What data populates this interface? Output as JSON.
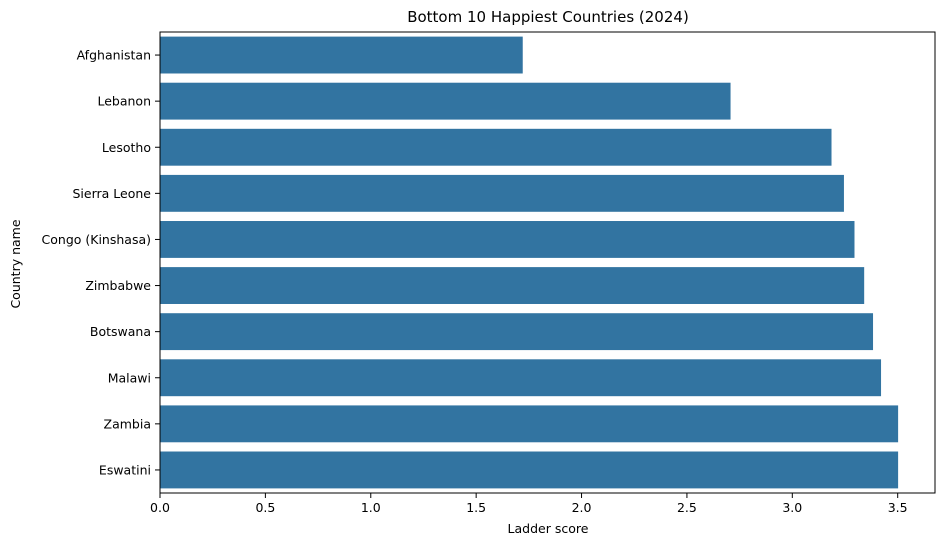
{
  "chart_data": {
    "type": "bar",
    "orientation": "horizontal",
    "title": "Bottom 10 Happiest Countries (2024)",
    "xlabel": "Ladder score",
    "ylabel": "Country name",
    "categories": [
      "Afghanistan",
      "Lebanon",
      "Lesotho",
      "Sierra Leone",
      "Congo (Kinshasa)",
      "Zimbabwe",
      "Botswana",
      "Malawi",
      "Zambia",
      "Eswatini"
    ],
    "values": [
      1.721,
      2.707,
      3.186,
      3.245,
      3.295,
      3.341,
      3.383,
      3.421,
      3.502,
      3.502
    ],
    "xlim": [
      0,
      3.677
    ],
    "xticks": [
      "0.0",
      "0.5",
      "1.0",
      "1.5",
      "2.0",
      "2.5",
      "3.0",
      "3.5"
    ],
    "grid": false,
    "bar_color": "#3274a1"
  }
}
